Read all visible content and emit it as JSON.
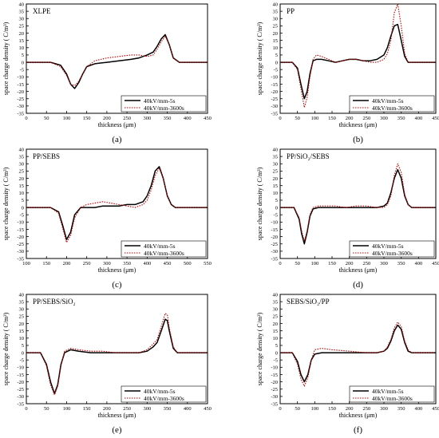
{
  "figure": {
    "legend_labels": [
      "40kV/mm-5s",
      "40kV/mm-3600s"
    ],
    "series_colors": {
      "5s": "#000000",
      "3600s": "#c00000"
    },
    "ylabel": "space charge density ( C/m³)",
    "xlabel": "thickness (μm)"
  },
  "chart_data": [
    {
      "type": "line",
      "panel_label": "(a)",
      "title": "XLPE",
      "xlabel": "thickness (μm)",
      "ylabel": "space charge density ( C/m³)",
      "xlim": [
        0,
        450
      ],
      "ylim": [
        -35,
        40
      ],
      "xticks": [
        0,
        50,
        100,
        150,
        200,
        250,
        300,
        350,
        400,
        450
      ],
      "yticks": [
        -35,
        -30,
        -25,
        -20,
        -15,
        -10,
        -5,
        0,
        5,
        10,
        15,
        20,
        25,
        30,
        35,
        40
      ],
      "legend": "bottom-right",
      "series": [
        {
          "name": "40kV/mm-5s",
          "color": "#000000",
          "style": "solid",
          "x": [
            0,
            60,
            85,
            100,
            110,
            120,
            130,
            140,
            150,
            170,
            200,
            230,
            260,
            280,
            300,
            315,
            325,
            335,
            345,
            355,
            365,
            380,
            420,
            450
          ],
          "y": [
            0,
            0,
            -2,
            -8,
            -15,
            -18,
            -14,
            -8,
            -3,
            -1,
            0,
            1,
            2,
            3,
            5,
            7,
            11,
            16,
            19,
            12,
            3,
            0,
            0,
            0
          ]
        },
        {
          "name": "40kV/mm-3600s",
          "color": "#c00000",
          "style": "dotted",
          "x": [
            0,
            60,
            85,
            100,
            110,
            120,
            130,
            140,
            150,
            170,
            200,
            230,
            260,
            280,
            300,
            315,
            325,
            335,
            345,
            355,
            365,
            380,
            420,
            450
          ],
          "y": [
            0,
            0,
            -3,
            -9,
            -15,
            -16,
            -13,
            -8,
            -3,
            1,
            3,
            4,
            5,
            5,
            4,
            5,
            9,
            14,
            18,
            12,
            3,
            0,
            0,
            0
          ]
        }
      ]
    },
    {
      "type": "line",
      "panel_label": "(b)",
      "title": "PP",
      "xlabel": "thickness (μm)",
      "ylabel": "space charge density ( C/m³)",
      "xlim": [
        0,
        450
      ],
      "ylim": [
        -35,
        40
      ],
      "xticks": [
        0,
        50,
        100,
        150,
        200,
        250,
        300,
        350,
        400,
        450
      ],
      "yticks": [
        -35,
        -30,
        -25,
        -20,
        -15,
        -10,
        -5,
        0,
        5,
        10,
        15,
        20,
        25,
        30,
        35,
        40
      ],
      "legend": "bottom-right",
      "series": [
        {
          "name": "40kV/mm-5s",
          "color": "#000000",
          "style": "solid",
          "x": [
            0,
            35,
            50,
            60,
            70,
            78,
            86,
            95,
            105,
            120,
            140,
            160,
            180,
            200,
            220,
            240,
            260,
            280,
            300,
            310,
            320,
            330,
            340,
            350,
            360,
            370,
            380,
            400,
            450
          ],
          "y": [
            0,
            0,
            -4,
            -15,
            -25,
            -20,
            -8,
            1,
            2,
            2,
            1,
            0,
            1,
            2,
            2,
            1,
            1,
            2,
            5,
            10,
            18,
            25,
            26,
            15,
            4,
            0,
            0,
            0,
            0
          ]
        },
        {
          "name": "40kV/mm-3600s",
          "color": "#c00000",
          "style": "dotted",
          "x": [
            0,
            35,
            50,
            60,
            70,
            78,
            86,
            95,
            105,
            120,
            140,
            160,
            180,
            200,
            220,
            240,
            260,
            280,
            300,
            310,
            320,
            330,
            340,
            350,
            360,
            370,
            380,
            400,
            450
          ],
          "y": [
            0,
            0,
            -5,
            -18,
            -31,
            -24,
            -10,
            2,
            5,
            4,
            2,
            0,
            1,
            2,
            2,
            1,
            0,
            0,
            2,
            6,
            15,
            34,
            40,
            25,
            6,
            0,
            0,
            0,
            0
          ]
        }
      ]
    },
    {
      "type": "line",
      "panel_label": "(c)",
      "title": "PP/SEBS",
      "xlabel": "thickness (μm)",
      "ylabel": "space charge density ( C/m³)",
      "xlim": [
        100,
        550
      ],
      "ylim": [
        -35,
        40
      ],
      "xticks": [
        100,
        150,
        200,
        250,
        300,
        350,
        400,
        450,
        500,
        550
      ],
      "yticks": [
        -35,
        -30,
        -25,
        -20,
        -15,
        -10,
        -5,
        0,
        5,
        10,
        15,
        20,
        25,
        30,
        35,
        40
      ],
      "legend": "bottom-right",
      "series": [
        {
          "name": "40kV/mm-5s",
          "color": "#000000",
          "style": "solid",
          "x": [
            100,
            160,
            180,
            190,
            200,
            210,
            220,
            235,
            250,
            270,
            290,
            310,
            330,
            350,
            370,
            390,
            400,
            410,
            420,
            430,
            440,
            450,
            460,
            470,
            500,
            550
          ],
          "y": [
            0,
            0,
            -3,
            -12,
            -22,
            -17,
            -5,
            0,
            0,
            0,
            1,
            1,
            1,
            2,
            2,
            4,
            8,
            15,
            25,
            28,
            20,
            8,
            2,
            0,
            0,
            0
          ]
        },
        {
          "name": "40kV/mm-3600s",
          "color": "#c00000",
          "style": "dotted",
          "x": [
            100,
            160,
            180,
            190,
            200,
            210,
            220,
            235,
            250,
            270,
            290,
            310,
            330,
            350,
            370,
            390,
            400,
            410,
            420,
            430,
            440,
            450,
            460,
            470,
            500,
            550
          ],
          "y": [
            0,
            0,
            -4,
            -14,
            -24,
            -19,
            -7,
            0,
            2,
            3,
            4,
            3,
            2,
            1,
            0,
            2,
            5,
            12,
            22,
            27,
            20,
            8,
            2,
            0,
            0,
            0
          ]
        }
      ]
    },
    {
      "type": "line",
      "panel_label": "(d)",
      "title": "PP/SiO₂/SEBS",
      "xlabel": "thickness (μm)",
      "ylabel": "space charge density ( C/m³)",
      "xlim": [
        0,
        450
      ],
      "ylim": [
        -35,
        40
      ],
      "xticks": [
        0,
        50,
        100,
        150,
        200,
        250,
        300,
        350,
        400,
        450
      ],
      "yticks": [
        -35,
        -30,
        -25,
        -20,
        -15,
        -10,
        -5,
        0,
        5,
        10,
        15,
        20,
        25,
        30,
        35,
        40
      ],
      "legend": "bottom-right",
      "series": [
        {
          "name": "40kV/mm-5s",
          "color": "#000000",
          "style": "solid",
          "x": [
            0,
            40,
            55,
            62,
            70,
            78,
            86,
            95,
            110,
            130,
            160,
            190,
            220,
            250,
            280,
            300,
            310,
            320,
            330,
            340,
            350,
            360,
            370,
            380,
            400,
            450
          ],
          "y": [
            0,
            0,
            -8,
            -18,
            -25,
            -17,
            -6,
            -1,
            0,
            0,
            0,
            0,
            0,
            0,
            0,
            1,
            3,
            10,
            20,
            26,
            20,
            8,
            2,
            0,
            0,
            0
          ]
        },
        {
          "name": "40kV/mm-3600s",
          "color": "#c00000",
          "style": "dotted",
          "x": [
            0,
            40,
            55,
            62,
            70,
            78,
            86,
            95,
            110,
            130,
            160,
            190,
            220,
            250,
            280,
            300,
            310,
            320,
            330,
            340,
            350,
            360,
            370,
            380,
            400,
            450
          ],
          "y": [
            0,
            0,
            -7,
            -16,
            -23,
            -16,
            -5,
            0,
            1,
            1,
            1,
            0,
            1,
            1,
            0,
            0,
            2,
            8,
            22,
            30,
            24,
            9,
            2,
            0,
            0,
            0
          ]
        }
      ]
    },
    {
      "type": "line",
      "panel_label": "(e)",
      "title": "PP/SEBS/SiO₂",
      "xlabel": "thickness (μm)",
      "ylabel": "space charge density ( C/m³)",
      "xlim": [
        0,
        450
      ],
      "ylim": [
        -35,
        40
      ],
      "xticks": [
        0,
        50,
        100,
        150,
        200,
        250,
        300,
        350,
        400,
        450
      ],
      "yticks": [
        -35,
        -30,
        -25,
        -20,
        -15,
        -10,
        -5,
        0,
        5,
        10,
        15,
        20,
        25,
        30,
        35,
        40
      ],
      "legend": "bottom-right",
      "series": [
        {
          "name": "40kV/mm-5s",
          "color": "#000000",
          "style": "solid",
          "x": [
            0,
            35,
            50,
            60,
            70,
            78,
            86,
            95,
            110,
            130,
            160,
            190,
            220,
            250,
            280,
            300,
            315,
            325,
            335,
            345,
            350,
            355,
            365,
            375,
            390,
            450
          ],
          "y": [
            0,
            0,
            -8,
            -20,
            -28,
            -22,
            -8,
            0,
            2,
            1,
            0,
            0,
            0,
            0,
            0,
            1,
            4,
            7,
            15,
            23,
            22,
            15,
            3,
            0,
            0,
            0
          ]
        },
        {
          "name": "40kV/mm-3600s",
          "color": "#c00000",
          "style": "dotted",
          "x": [
            0,
            35,
            50,
            60,
            70,
            78,
            86,
            95,
            110,
            130,
            160,
            190,
            220,
            250,
            280,
            300,
            315,
            325,
            335,
            345,
            350,
            355,
            365,
            375,
            390,
            450
          ],
          "y": [
            0,
            0,
            -9,
            -22,
            -29,
            -23,
            -9,
            1,
            3,
            2,
            1,
            1,
            0,
            0,
            0,
            2,
            6,
            9,
            18,
            27,
            26,
            17,
            4,
            0,
            0,
            0
          ]
        }
      ]
    },
    {
      "type": "line",
      "panel_label": "(f)",
      "title": "SEBS/SiO₂/PP",
      "xlabel": "thickness (μm)",
      "ylabel": "space charge density ( C/m³)",
      "xlim": [
        0,
        450
      ],
      "ylim": [
        -35,
        40
      ],
      "xticks": [
        0,
        50,
        100,
        150,
        200,
        250,
        300,
        350,
        400,
        450
      ],
      "yticks": [
        -35,
        -30,
        -25,
        -20,
        -15,
        -10,
        -5,
        0,
        5,
        10,
        15,
        20,
        25,
        30,
        35,
        40
      ],
      "legend": "bottom-right",
      "series": [
        {
          "name": "40kV/mm-5s",
          "color": "#000000",
          "style": "solid",
          "x": [
            0,
            35,
            50,
            60,
            70,
            80,
            90,
            100,
            120,
            150,
            200,
            250,
            280,
            300,
            310,
            320,
            330,
            340,
            350,
            360,
            370,
            380,
            400,
            450
          ],
          "y": [
            0,
            0,
            -6,
            -15,
            -20,
            -15,
            -5,
            -1,
            0,
            0,
            0,
            0,
            0,
            1,
            3,
            8,
            15,
            19,
            16,
            7,
            1,
            0,
            0,
            0
          ]
        },
        {
          "name": "40kV/mm-3600s",
          "color": "#c00000",
          "style": "dotted",
          "x": [
            0,
            35,
            50,
            60,
            70,
            80,
            90,
            100,
            120,
            150,
            200,
            250,
            280,
            300,
            310,
            320,
            330,
            340,
            350,
            360,
            370,
            380,
            400,
            450
          ],
          "y": [
            0,
            0,
            -8,
            -18,
            -23,
            -17,
            -5,
            2,
            3,
            2,
            1,
            0,
            0,
            1,
            4,
            9,
            17,
            21,
            18,
            8,
            2,
            0,
            0,
            0
          ]
        }
      ]
    }
  ]
}
